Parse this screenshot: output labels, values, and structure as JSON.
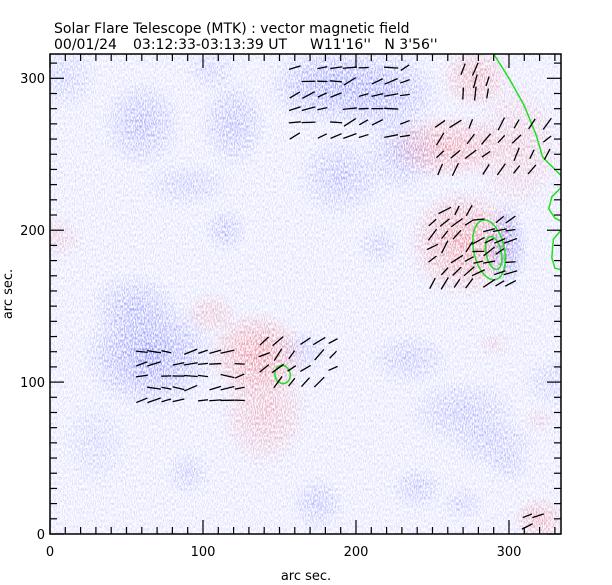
{
  "chart_data": {
    "type": "heatmap",
    "title": "Solar Flare Telescope (MTK) : vector magnetic field",
    "subtitle_date": "00/01/24",
    "subtitle_time": "03:12:33-03:13:39 UT",
    "subtitle_position": "W11'16''   N 3'56''",
    "xlabel": "arc sec.",
    "ylabel": "arc sec.",
    "xlim": [
      0,
      334
    ],
    "ylim": [
      0,
      316
    ],
    "xticks": [
      0,
      100,
      200,
      300
    ],
    "yticks": [
      0,
      100,
      200,
      300
    ],
    "x_tick_labels": [
      "0",
      "100",
      "200",
      "300"
    ],
    "y_tick_labels": [
      "0",
      "100",
      "200",
      "300"
    ],
    "minor_tick_step": 10,
    "colors": {
      "positive_polarity": "#ff4a4a",
      "negative_polarity": "#3c44ff",
      "contour": "#22dd22",
      "vectors": "#000000",
      "axes": "#000000"
    },
    "positive_regions": [
      {
        "x": 135,
        "y": 118,
        "rx": 22,
        "ry": 20,
        "strength": 1.0
      },
      {
        "x": 140,
        "y": 80,
        "rx": 20,
        "ry": 25,
        "strength": 0.6
      },
      {
        "x": 105,
        "y": 145,
        "rx": 12,
        "ry": 10,
        "strength": 0.5
      },
      {
        "x": 270,
        "y": 192,
        "rx": 25,
        "ry": 25,
        "strength": 0.95
      },
      {
        "x": 260,
        "y": 255,
        "rx": 28,
        "ry": 15,
        "strength": 0.85
      },
      {
        "x": 278,
        "y": 300,
        "rx": 16,
        "ry": 14,
        "strength": 0.7
      },
      {
        "x": 305,
        "y": 255,
        "rx": 20,
        "ry": 30,
        "strength": 0.45
      },
      {
        "x": 320,
        "y": 10,
        "rx": 12,
        "ry": 10,
        "strength": 0.7
      },
      {
        "x": 290,
        "y": 125,
        "rx": 8,
        "ry": 6,
        "strength": 0.3
      },
      {
        "x": 5,
        "y": 195,
        "rx": 12,
        "ry": 10,
        "strength": 0.35
      },
      {
        "x": 320,
        "y": 75,
        "rx": 8,
        "ry": 6,
        "strength": 0.3
      }
    ],
    "negative_regions": [
      {
        "x": 65,
        "y": 118,
        "rx": 30,
        "ry": 25,
        "strength": 1.0
      },
      {
        "x": 55,
        "y": 150,
        "rx": 20,
        "ry": 15,
        "strength": 0.6
      },
      {
        "x": 185,
        "y": 295,
        "rx": 30,
        "ry": 18,
        "strength": 0.9
      },
      {
        "x": 220,
        "y": 290,
        "rx": 25,
        "ry": 20,
        "strength": 0.7
      },
      {
        "x": 298,
        "y": 190,
        "rx": 10,
        "ry": 20,
        "strength": 1.0
      },
      {
        "x": 60,
        "y": 270,
        "rx": 18,
        "ry": 20,
        "strength": 0.65
      },
      {
        "x": 120,
        "y": 270,
        "rx": 15,
        "ry": 20,
        "strength": 0.6
      },
      {
        "x": 190,
        "y": 235,
        "rx": 20,
        "ry": 18,
        "strength": 0.55
      },
      {
        "x": 230,
        "y": 250,
        "rx": 18,
        "ry": 18,
        "strength": 0.55
      },
      {
        "x": 90,
        "y": 230,
        "rx": 20,
        "ry": 10,
        "strength": 0.4
      },
      {
        "x": 115,
        "y": 200,
        "rx": 10,
        "ry": 10,
        "strength": 0.5
      },
      {
        "x": 105,
        "y": 305,
        "rx": 12,
        "ry": 10,
        "strength": 0.35
      },
      {
        "x": 10,
        "y": 300,
        "rx": 15,
        "ry": 15,
        "strength": 0.35
      },
      {
        "x": 235,
        "y": 115,
        "rx": 18,
        "ry": 12,
        "strength": 0.45
      },
      {
        "x": 270,
        "y": 80,
        "rx": 25,
        "ry": 15,
        "strength": 0.5
      },
      {
        "x": 290,
        "y": 60,
        "rx": 20,
        "ry": 12,
        "strength": 0.45
      },
      {
        "x": 330,
        "y": 100,
        "rx": 15,
        "ry": 12,
        "strength": 0.35
      },
      {
        "x": 90,
        "y": 40,
        "rx": 10,
        "ry": 10,
        "strength": 0.4
      },
      {
        "x": 175,
        "y": 20,
        "rx": 12,
        "ry": 12,
        "strength": 0.5
      },
      {
        "x": 240,
        "y": 30,
        "rx": 12,
        "ry": 10,
        "strength": 0.45
      },
      {
        "x": 270,
        "y": 20,
        "rx": 10,
        "ry": 8,
        "strength": 0.35
      },
      {
        "x": 300,
        "y": 45,
        "rx": 10,
        "ry": 8,
        "strength": 0.35
      },
      {
        "x": 215,
        "y": 190,
        "rx": 10,
        "ry": 10,
        "strength": 0.35
      },
      {
        "x": 165,
        "y": 120,
        "rx": 12,
        "ry": 10,
        "strength": 0.4
      },
      {
        "x": 30,
        "y": 60,
        "rx": 15,
        "ry": 20,
        "strength": 0.25
      }
    ],
    "vector_fields": [
      {
        "region": "negative-west",
        "x0": 60,
        "x1": 125,
        "y0": 88,
        "y1": 125,
        "step": 8,
        "angle": 5
      },
      {
        "region": "positive-center",
        "x0": 140,
        "x1": 185,
        "y0": 100,
        "y1": 135,
        "step": 9,
        "angle": 40
      },
      {
        "region": "negative-north",
        "x0": 160,
        "x1": 240,
        "y0": 262,
        "y1": 310,
        "step": 9,
        "angle": 15
      },
      {
        "region": "positive-ne",
        "x0": 255,
        "x1": 330,
        "y0": 240,
        "y1": 275,
        "step": 10,
        "angle": 50
      },
      {
        "region": "positive-npole",
        "x0": 270,
        "x1": 290,
        "y0": 290,
        "y1": 312,
        "step": 8,
        "angle": 70
      },
      {
        "region": "positive-east",
        "x0": 250,
        "x1": 280,
        "y0": 165,
        "y1": 215,
        "step": 8,
        "angle": 45
      },
      {
        "region": "sunspot-east",
        "x0": 280,
        "x1": 305,
        "y0": 165,
        "y1": 210,
        "step": 7,
        "angle": 20
      },
      {
        "region": "positive-se",
        "x0": 312,
        "x1": 325,
        "y0": 5,
        "y1": 15,
        "step": 7,
        "angle": 10
      }
    ],
    "contours": [
      {
        "name": "sunspot-outer",
        "cx": 287,
        "cy": 187,
        "rx": 10,
        "ry": 20
      },
      {
        "name": "sunspot-inner",
        "cx": 290,
        "cy": 185,
        "rx": 5,
        "ry": 11
      },
      {
        "name": "pore-center",
        "cx": 152,
        "cy": 105,
        "rx": 5,
        "ry": 6
      }
    ],
    "limb_contour": [
      [
        290,
        316
      ],
      [
        300,
        300
      ],
      [
        310,
        282
      ],
      [
        318,
        262
      ],
      [
        322,
        248
      ],
      [
        330,
        240
      ],
      [
        334,
        236
      ]
    ],
    "limb_contour_2": [
      [
        334,
        228
      ],
      [
        328,
        222
      ],
      [
        326,
        214
      ],
      [
        330,
        208
      ],
      [
        334,
        206
      ]
    ],
    "limb_contour_3": [
      [
        334,
        200
      ],
      [
        329,
        194
      ],
      [
        328,
        182
      ],
      [
        330,
        175
      ],
      [
        334,
        174
      ]
    ]
  }
}
